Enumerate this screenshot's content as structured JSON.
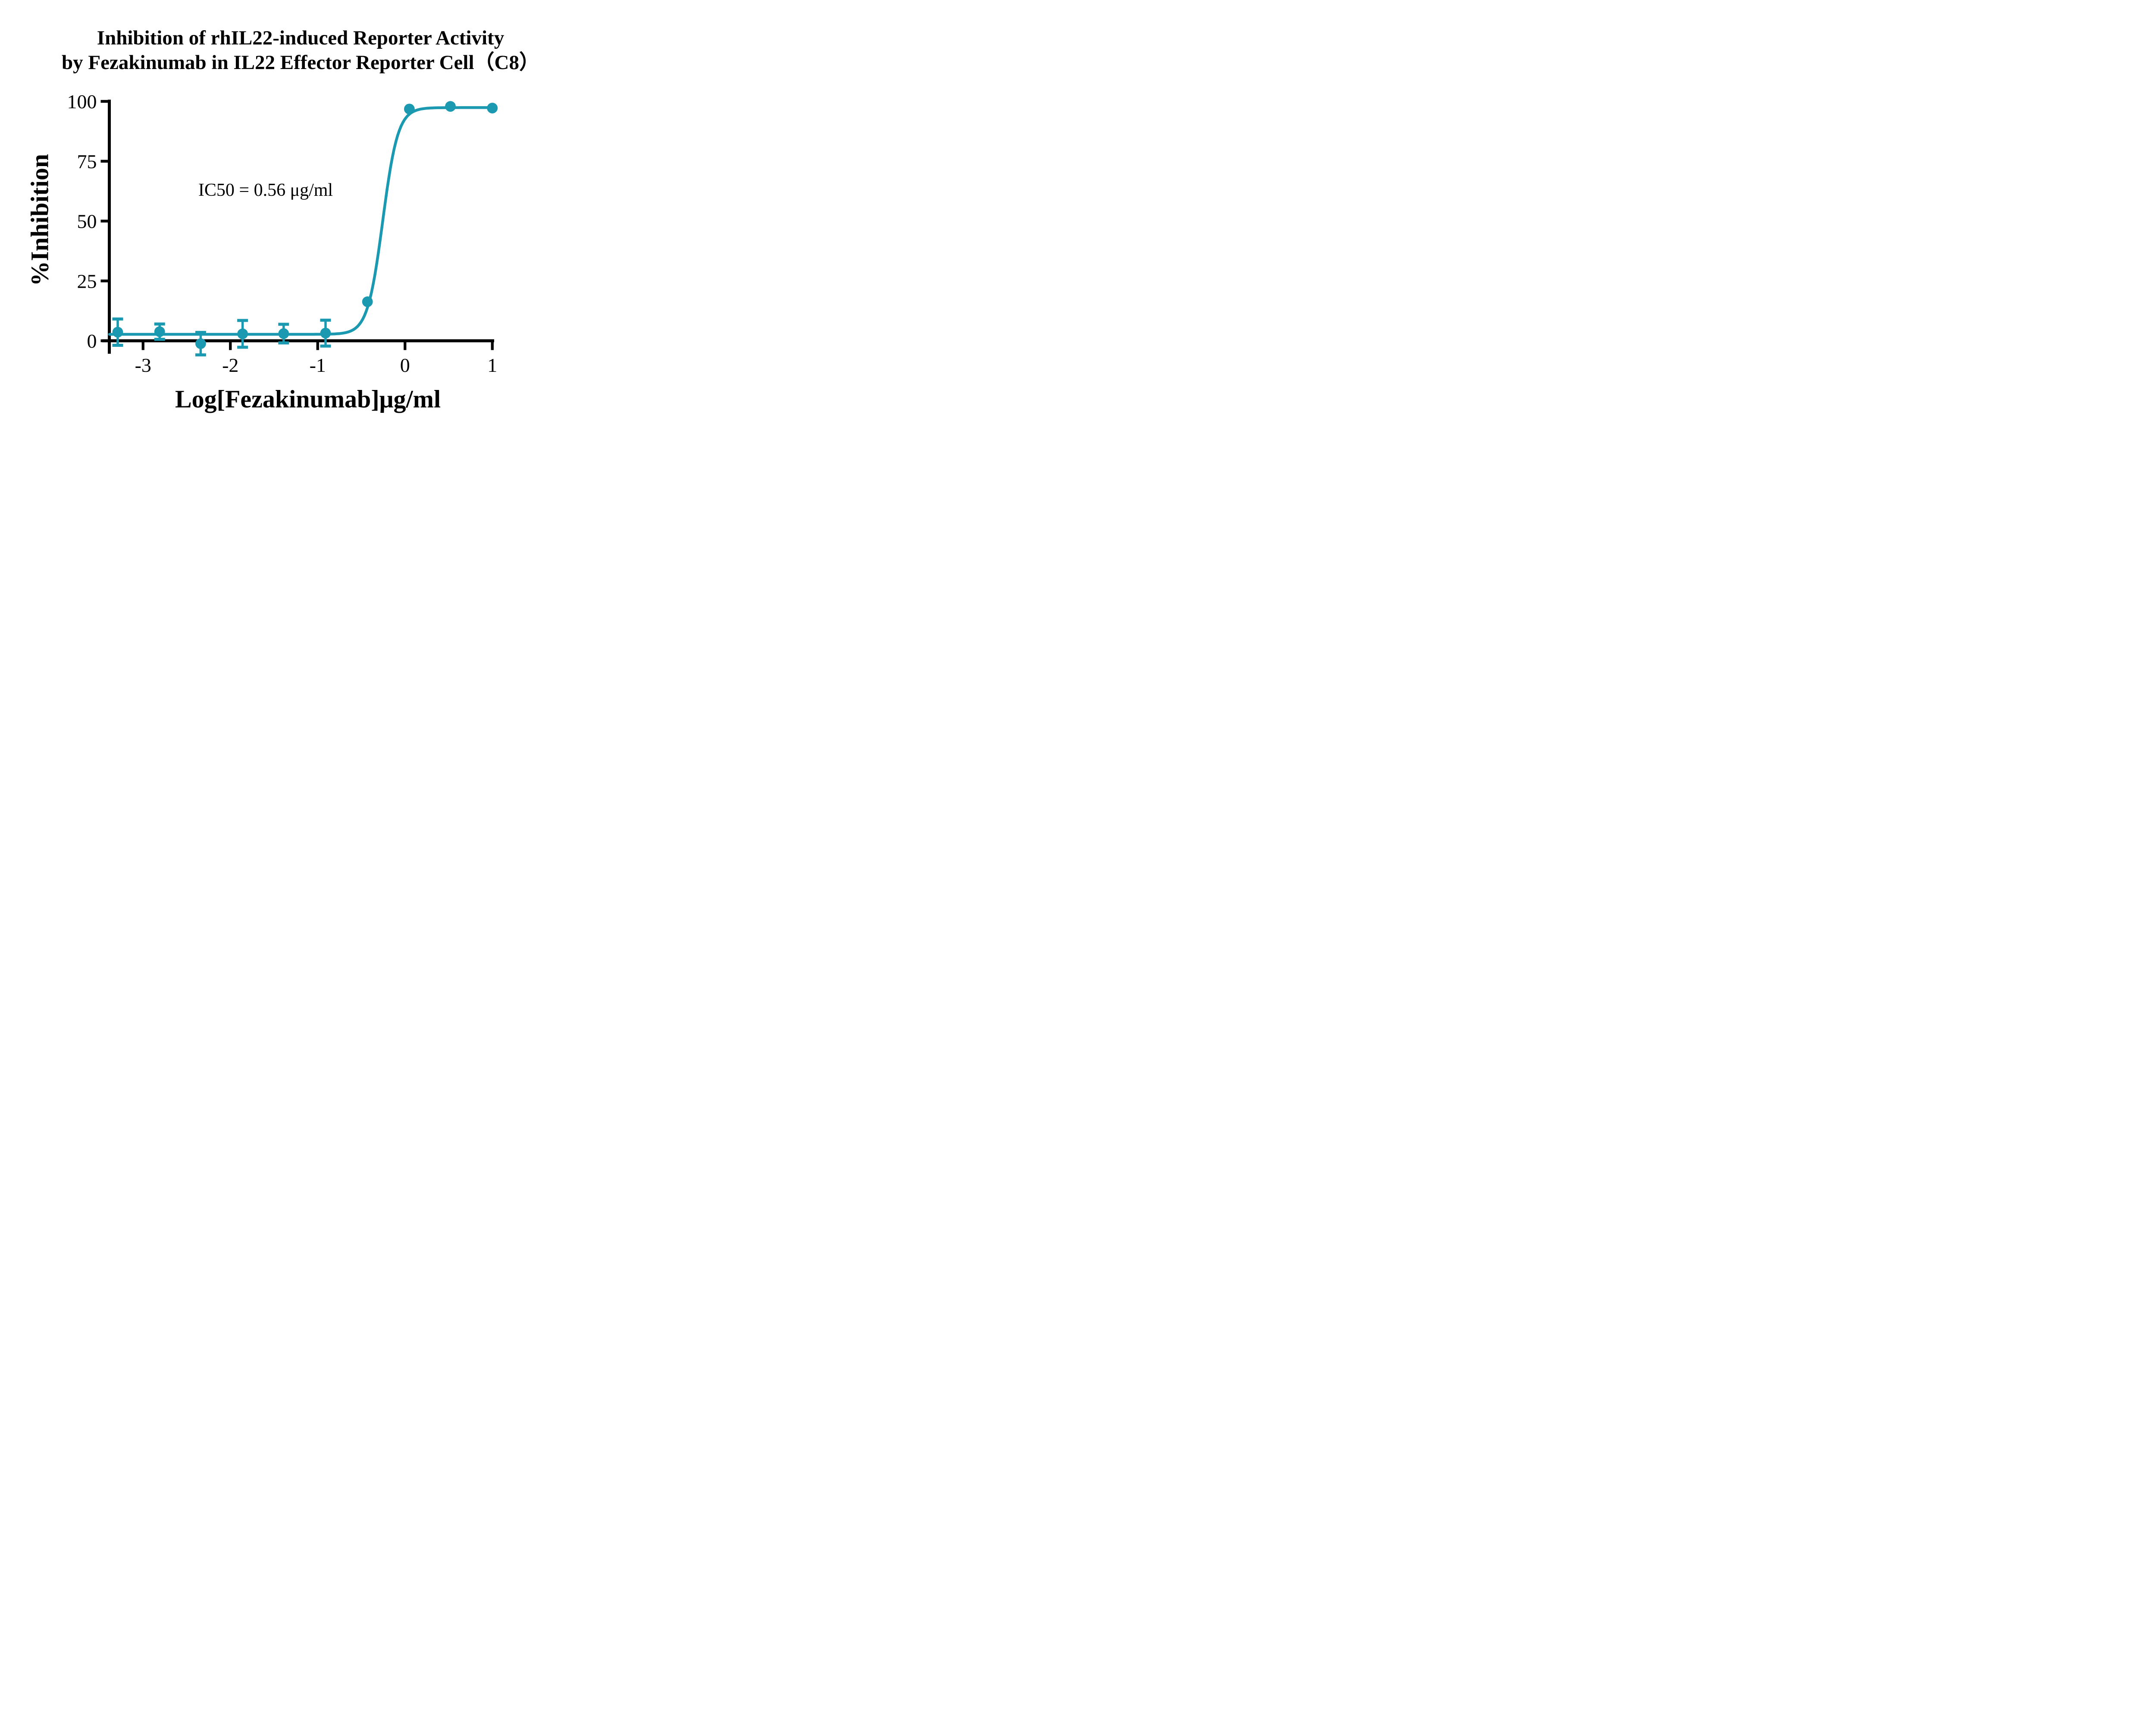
{
  "chart_data": {
    "type": "scatter",
    "subtype": "dose-response-curve-with-fit",
    "title": "Inhibition of rhIL22-induced Reporter Activity by Fezakinumab in IL22 Effector Reporter Cell（C8）",
    "title_lines": [
      "Inhibition of rhIL22-induced Reporter Activity",
      "by Fezakinumab in IL22 Effector Reporter Cell（C8）"
    ],
    "xlabel": "Log[Fezakinumab]μg/ml",
    "ylabel": "%Inhibition",
    "annotations": [
      "IC50 = 0.56 μg/ml"
    ],
    "xlim": [
      -3.4,
      1.05
    ],
    "ylim": [
      0,
      100
    ],
    "xticks": [
      "-3",
      "-2",
      "-1",
      "0",
      "1"
    ],
    "xtick_values": [
      -3,
      -2,
      -1,
      0,
      1
    ],
    "yticks": [
      "100",
      "75",
      "50",
      "25",
      "0"
    ],
    "ytick_values": [
      100,
      75,
      50,
      25,
      0
    ],
    "grid": "off",
    "legend": "none",
    "series_name": "Fezakinumab",
    "points": [
      {
        "log_x": -3.29,
        "y": 3.6,
        "sd": 5.5
      },
      {
        "log_x": -2.81,
        "y": 3.8,
        "sd": 3.2
      },
      {
        "log_x": -2.34,
        "y": -1.2,
        "sd": 4.7
      },
      {
        "log_x": -1.86,
        "y": 2.9,
        "sd": 5.6
      },
      {
        "log_x": -1.39,
        "y": 3.0,
        "sd": 3.9
      },
      {
        "log_x": -0.91,
        "y": 3.2,
        "sd": 5.4
      },
      {
        "log_x": -0.43,
        "y": 16.3,
        "sd": 0
      },
      {
        "log_x": 0.05,
        "y": 96.8,
        "sd": 0
      },
      {
        "log_x": 0.52,
        "y": 97.9,
        "sd": 0
      },
      {
        "log_x": 1.0,
        "y": 97.2,
        "sd": 0
      }
    ],
    "fit": {
      "model": "four-parameter-logistic",
      "bottom": 2.7,
      "top": 97.4,
      "ic50_ug_ml": 0.56,
      "log_ic50": -0.255,
      "hill_slope": 5.0,
      "x_start": -3.385,
      "x_end": 1.0
    },
    "colors": {
      "series": "#1B99B1",
      "axis": "#000000",
      "text": "#000000",
      "background": "#FFFFFF"
    }
  }
}
